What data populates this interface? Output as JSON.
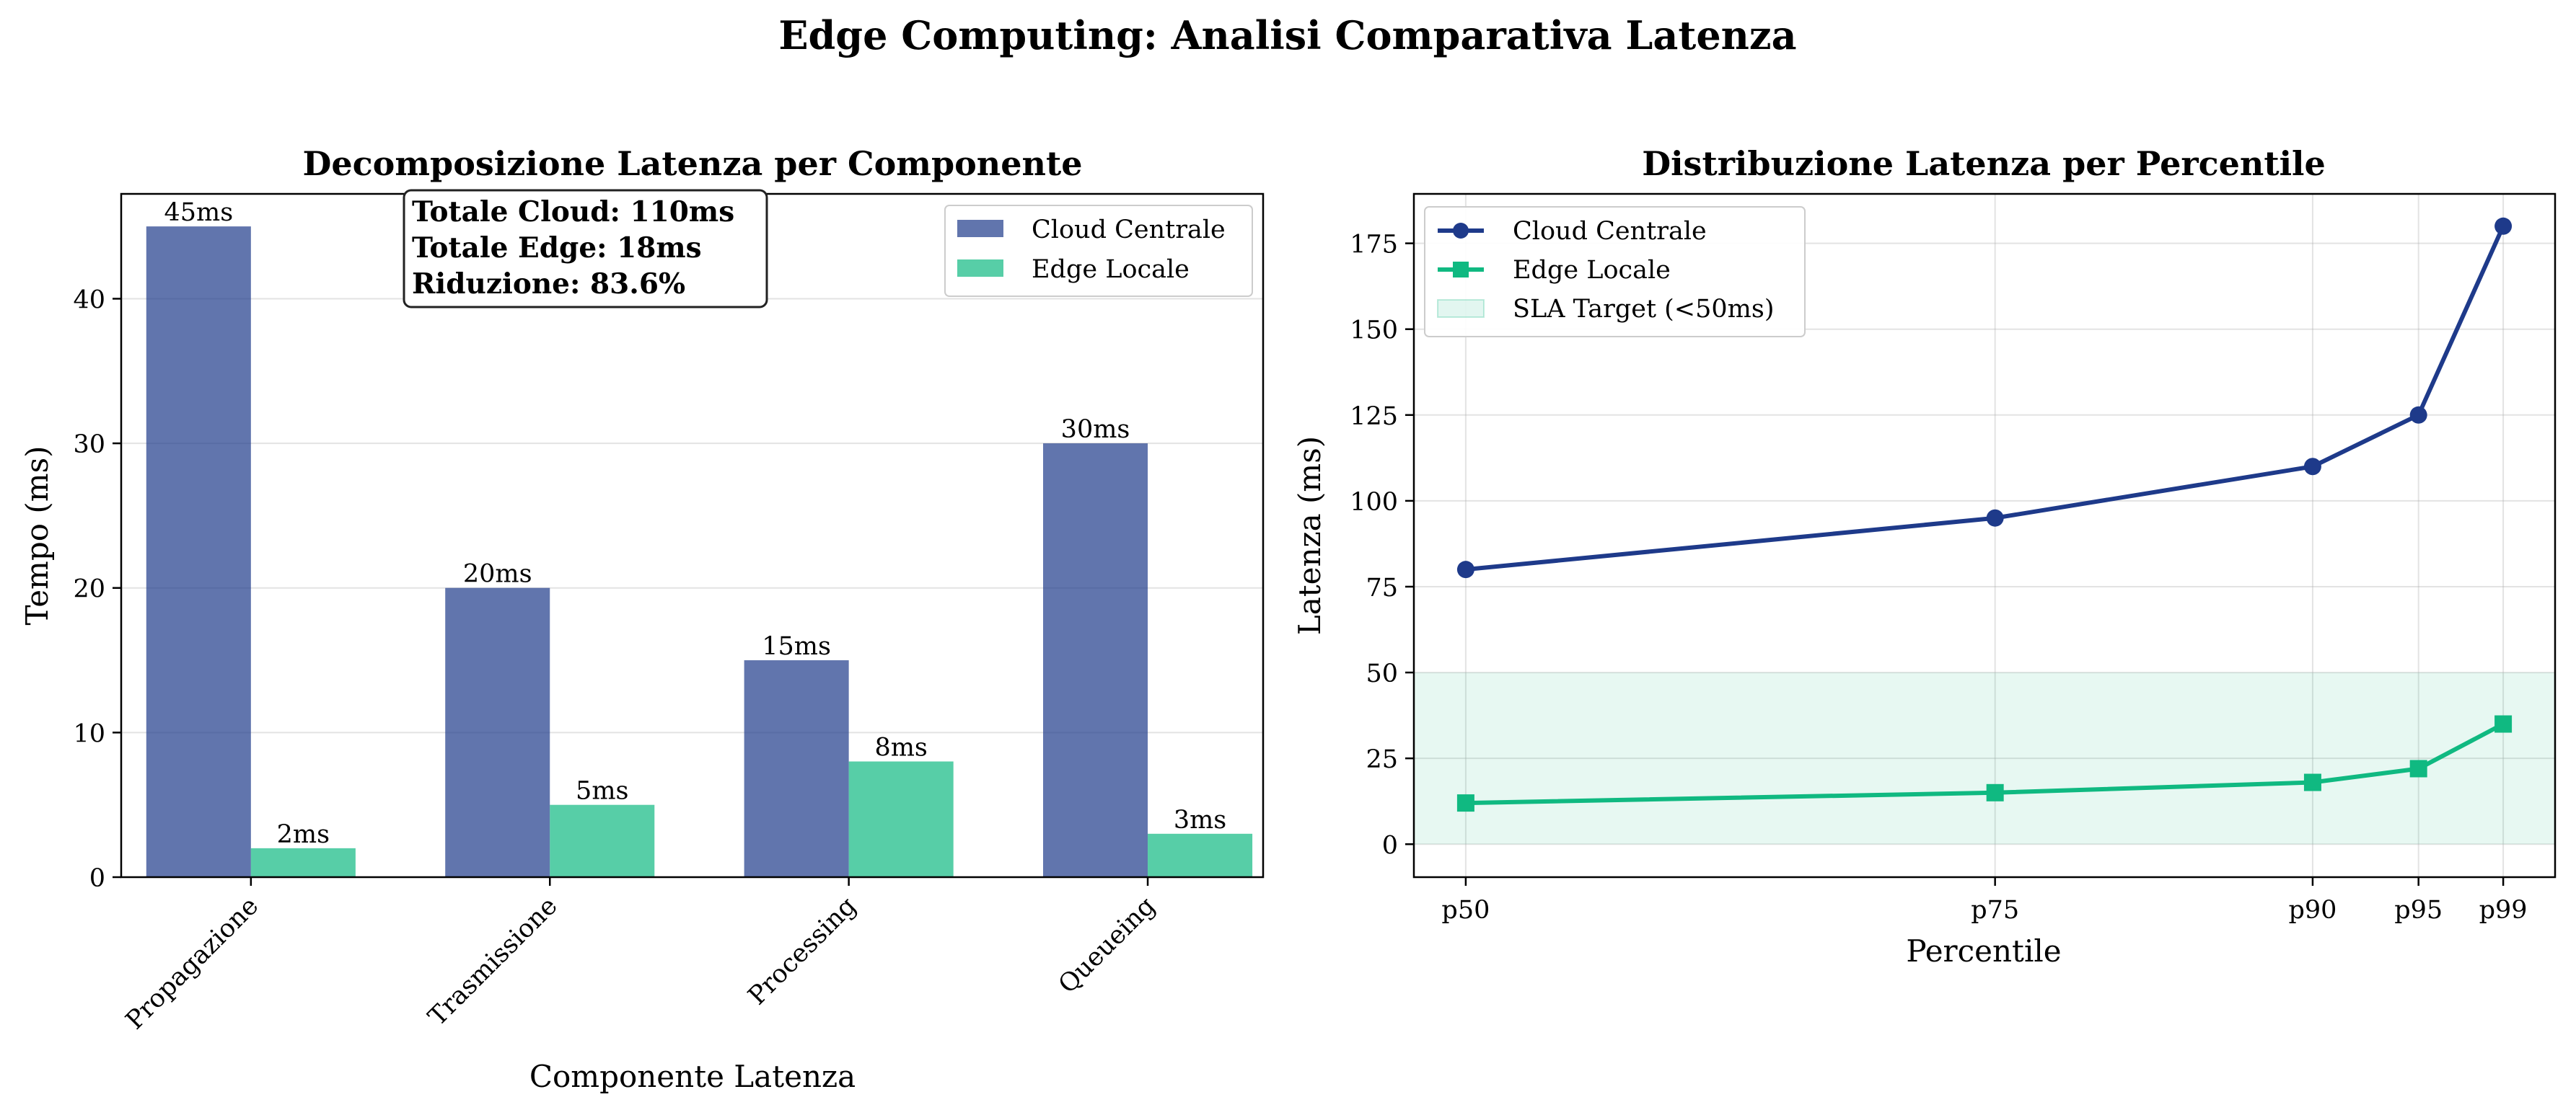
{
  "figure": {
    "title": "Edge Computing: Analisi Comparativa Latenza"
  },
  "chart_data": [
    {
      "type": "bar",
      "title": "Decomposizione Latenza per Componente",
      "xlabel": "Componente Latenza",
      "ylabel": "Tempo (ms)",
      "categories": [
        "Propagazione",
        "Trasmissione",
        "Processing",
        "Queueing"
      ],
      "series": [
        {
          "name": "Cloud Centrale",
          "values": [
            45,
            20,
            15,
            30
          ],
          "labels": [
            "45ms",
            "20ms",
            "15ms",
            "30ms"
          ],
          "color": "#1e3a8a"
        },
        {
          "name": "Edge Locale",
          "values": [
            2,
            5,
            8,
            3
          ],
          "labels": [
            "2ms",
            "5ms",
            "8ms",
            "3ms"
          ],
          "color": "#10b981"
        }
      ],
      "ylim": [
        0,
        47.25
      ],
      "yticks": [
        0,
        10,
        20,
        30,
        40
      ],
      "grid": true,
      "legend": "upper-right",
      "annotation": [
        "Totale Cloud: 110ms",
        "Totale Edge: 18ms",
        "Riduzione: 83.6%"
      ]
    },
    {
      "type": "line",
      "title": "Distribuzione Latenza per Percentile",
      "xlabel": "Percentile",
      "ylabel": "Latenza (ms)",
      "x": [
        50,
        75,
        90,
        95,
        99
      ],
      "xtick_labels": [
        "p50",
        "p75",
        "p90",
        "p95",
        "p99"
      ],
      "xlim": [
        47.55,
        101.45
      ],
      "series": [
        {
          "name": "Cloud Centrale",
          "values": [
            80,
            95,
            110,
            125,
            180
          ],
          "color": "#1e3a8a",
          "marker": "circle"
        },
        {
          "name": "Edge Locale",
          "values": [
            12,
            15,
            18,
            22,
            35
          ],
          "color": "#10b981",
          "marker": "square"
        }
      ],
      "sla_band": {
        "name": "SLA Target (<50ms)",
        "from": 0,
        "to": 50,
        "color": "#10b981"
      },
      "ylim": [
        -9.6,
        189.4
      ],
      "yticks": [
        0,
        25,
        50,
        75,
        100,
        125,
        150,
        175
      ],
      "grid": true,
      "legend": "upper-left"
    }
  ]
}
